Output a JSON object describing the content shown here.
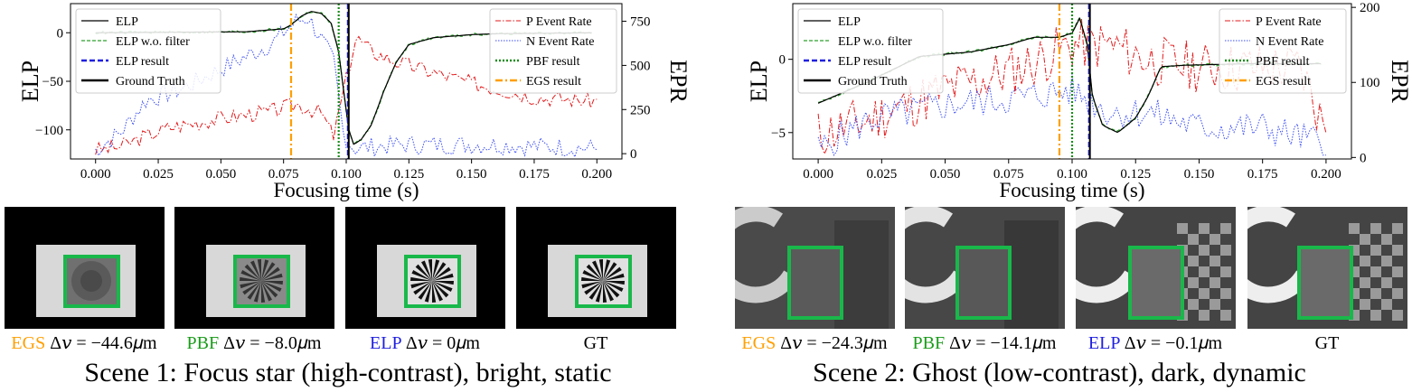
{
  "colors": {
    "ELP": "#000000",
    "ELP_wo": "#2ca02c",
    "ELP_result": "#1f1fdf",
    "GT": "#000000",
    "P": "#e31a1c",
    "N": "#3b4ef2",
    "PBF": "#1a8c1a",
    "EGS": "#ff9f00",
    "box": "#19b84a"
  },
  "legend_left": {
    "elp": "ELP",
    "elp_wo": "ELP w.o. filter",
    "elp_result": "ELP result",
    "gt": "Ground Truth"
  },
  "legend_right": {
    "p_rate": "P Event Rate",
    "n_rate": "N Event Rate",
    "pbf": "PBF result",
    "egs": "EGS result"
  },
  "axis": {
    "xlabel": "Focusing time (s)",
    "ylabel_left": "ELP",
    "ylabel_right": "EPR"
  },
  "chart_data": [
    {
      "type": "line",
      "title": "",
      "xlabel": "Focusing time (s)",
      "ylabel": "ELP",
      "y2label": "EPR",
      "xlim": [
        -0.01,
        0.21
      ],
      "ylim": [
        -130,
        30
      ],
      "y2lim": [
        -30,
        850
      ],
      "xticks": [
        0.0,
        0.025,
        0.05,
        0.075,
        0.1,
        0.125,
        0.15,
        0.175,
        0.2
      ],
      "xticklabels": [
        "0.000",
        "0.025",
        "0.050",
        "0.075",
        "0.100",
        "0.125",
        "0.150",
        "0.175",
        "0.200"
      ],
      "yticks": [
        0,
        -50,
        -100
      ],
      "yticklabels": [
        "0",
        "−50",
        "−100"
      ],
      "y2ticks": [
        0,
        250,
        500,
        750
      ],
      "y2ticklabels": [
        "0",
        "250",
        "500",
        "750"
      ],
      "vlines": {
        "egs": 0.078,
        "pbf": 0.097,
        "elp": 0.101,
        "gt": 0.101
      },
      "elp_points": [
        [
          0.0,
          0
        ],
        [
          0.06,
          1
        ],
        [
          0.07,
          3
        ],
        [
          0.075,
          4
        ],
        [
          0.078,
          8
        ],
        [
          0.082,
          17
        ],
        [
          0.086,
          22
        ],
        [
          0.09,
          20
        ],
        [
          0.094,
          10
        ],
        [
          0.097,
          -20
        ],
        [
          0.099,
          -60
        ],
        [
          0.101,
          -100
        ],
        [
          0.103,
          -115
        ],
        [
          0.106,
          -110
        ],
        [
          0.11,
          -95
        ],
        [
          0.115,
          -60
        ],
        [
          0.12,
          -30
        ],
        [
          0.125,
          -12
        ],
        [
          0.135,
          -5
        ],
        [
          0.15,
          -2
        ],
        [
          0.16,
          -1
        ],
        [
          0.2,
          0
        ]
      ],
      "series": [
        {
          "name": "P Event Rate",
          "seed": 3,
          "points": [
            [
              0.0,
              20
            ],
            [
              0.01,
              40
            ],
            [
              0.02,
              100
            ],
            [
              0.03,
              150
            ],
            [
              0.05,
              200
            ],
            [
              0.07,
              240
            ],
            [
              0.08,
              280
            ],
            [
              0.09,
              230
            ],
            [
              0.095,
              100
            ],
            [
              0.1,
              420
            ],
            [
              0.104,
              660
            ],
            [
              0.11,
              580
            ],
            [
              0.12,
              520
            ],
            [
              0.15,
              400
            ],
            [
              0.175,
              320
            ],
            [
              0.198,
              300
            ]
          ],
          "noise": 45
        },
        {
          "name": "N Event Rate",
          "seed": 7,
          "points": [
            [
              0.0,
              20
            ],
            [
              0.01,
              120
            ],
            [
              0.02,
              300
            ],
            [
              0.035,
              370
            ],
            [
              0.05,
              480
            ],
            [
              0.07,
              620
            ],
            [
              0.08,
              750
            ],
            [
              0.085,
              770
            ],
            [
              0.09,
              650
            ],
            [
              0.095,
              520
            ],
            [
              0.099,
              100
            ],
            [
              0.103,
              30
            ],
            [
              0.12,
              50
            ],
            [
              0.16,
              50
            ],
            [
              0.198,
              30
            ]
          ],
          "noise": 55
        }
      ]
    },
    {
      "type": "line",
      "title": "",
      "xlabel": "Focusing time (s)",
      "ylabel": "ELP",
      "y2label": "EPR",
      "xlim": [
        -0.01,
        0.21
      ],
      "ylim": [
        -6.8,
        3.8
      ],
      "y2lim": [
        -2,
        205
      ],
      "xticks": [
        0.0,
        0.025,
        0.05,
        0.075,
        0.1,
        0.125,
        0.15,
        0.175,
        0.2
      ],
      "xticklabels": [
        "0.000",
        "0.025",
        "0.050",
        "0.075",
        "0.100",
        "0.125",
        "0.150",
        "0.175",
        "0.200"
      ],
      "yticks": [
        0,
        -5
      ],
      "yticklabels": [
        "0",
        "−5"
      ],
      "y2ticks": [
        0,
        100,
        200
      ],
      "y2ticklabels": [
        "0",
        "100",
        "200"
      ],
      "vlines": {
        "egs": 0.095,
        "pbf": 0.1,
        "elp": 0.107,
        "gt": 0.107
      },
      "elp_points": [
        [
          0.0,
          -3.0
        ],
        [
          0.02,
          -1.5
        ],
        [
          0.04,
          0.2
        ],
        [
          0.06,
          0.5
        ],
        [
          0.075,
          1.0
        ],
        [
          0.085,
          1.5
        ],
        [
          0.095,
          1.5
        ],
        [
          0.1,
          1.8
        ],
        [
          0.103,
          2.8
        ],
        [
          0.106,
          1.0
        ],
        [
          0.108,
          -2.5
        ],
        [
          0.112,
          -4.5
        ],
        [
          0.118,
          -5.0
        ],
        [
          0.125,
          -4.0
        ],
        [
          0.13,
          -2.5
        ],
        [
          0.135,
          -0.5
        ],
        [
          0.145,
          -0.4
        ],
        [
          0.17,
          -0.3
        ],
        [
          0.198,
          -0.3
        ]
      ],
      "series": [
        {
          "name": "P Event Rate",
          "seed": 11,
          "points": [
            [
              0.0,
              30
            ],
            [
              0.02,
              50
            ],
            [
              0.05,
              90
            ],
            [
              0.08,
              120
            ],
            [
              0.1,
              150
            ],
            [
              0.115,
              150
            ],
            [
              0.13,
              130
            ],
            [
              0.15,
              120
            ],
            [
              0.17,
              120
            ],
            [
              0.19,
              120
            ],
            [
              0.198,
              50
            ]
          ],
          "noise": 35
        },
        {
          "name": "N Event Rate",
          "seed": 5,
          "points": [
            [
              0.0,
              10
            ],
            [
              0.02,
              50
            ],
            [
              0.05,
              70
            ],
            [
              0.08,
              80
            ],
            [
              0.1,
              90
            ],
            [
              0.115,
              60
            ],
            [
              0.13,
              60
            ],
            [
              0.15,
              40
            ],
            [
              0.175,
              40
            ],
            [
              0.198,
              20
            ]
          ],
          "noise": 22
        }
      ]
    }
  ],
  "scene1": {
    "title": "Scene 1: Focus star (high-contrast), bright, static",
    "captions": [
      {
        "method": "EGS",
        "value": "Δ𝑣 = −44.6𝜇m"
      },
      {
        "method": "PBF",
        "value": "Δ𝑣 = −8.0𝜇m"
      },
      {
        "method": "ELP",
        "value": "Δ𝑣 = 0𝜇m"
      },
      {
        "method": "",
        "value": "GT"
      }
    ]
  },
  "scene2": {
    "title": "Scene 2: Ghost (low-contrast), dark, dynamic",
    "captions": [
      {
        "method": "EGS",
        "value": "Δ𝑣 = −24.3𝜇m"
      },
      {
        "method": "PBF",
        "value": "Δ𝑣 = −14.1𝜇m"
      },
      {
        "method": "ELP",
        "value": "Δ𝑣 = −0.1𝜇m"
      },
      {
        "method": "",
        "value": "GT"
      }
    ]
  }
}
